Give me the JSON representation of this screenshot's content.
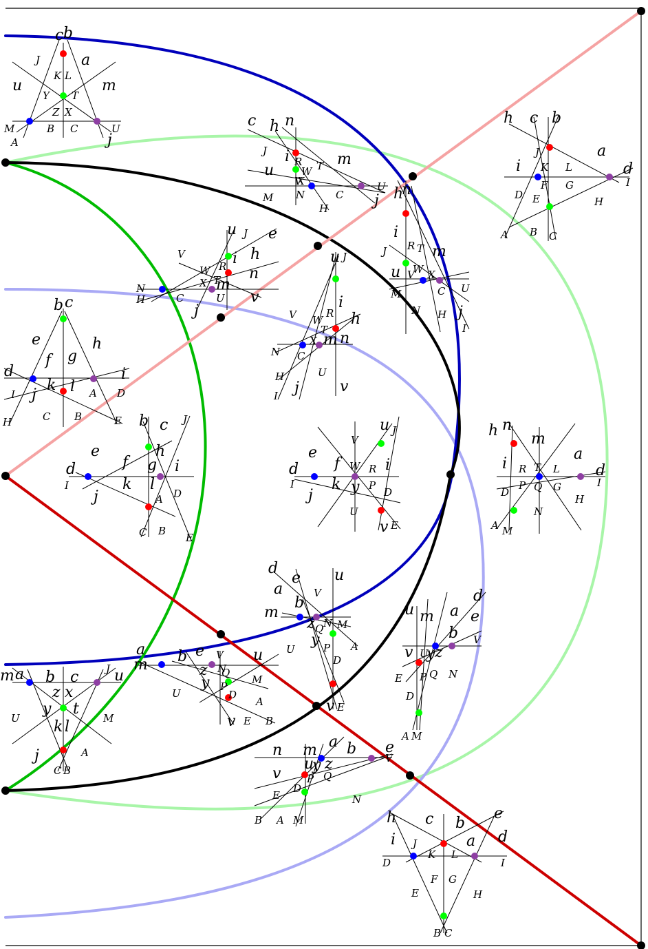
{
  "colors": {
    "dark_blue": "#0000bb",
    "light_blue": "#a9a9f5",
    "green": "#00bb00",
    "light_green": "#a8f5a8",
    "pink": "#f5a3a3",
    "dark_red": "#cc0000",
    "black": "#000000",
    "dot_red": "#ff0000",
    "dot_green": "#00ff00",
    "dot_blue": "#0000ff",
    "dot_purple": "#8e3fa3"
  },
  "glyphs": [
    {
      "t": "c",
      "b": 1
    },
    {
      "t": "b",
      "b": 1
    },
    {
      "t": "J",
      "b": 0
    },
    {
      "t": "a",
      "b": 1
    },
    {
      "t": "K",
      "b": 0
    },
    {
      "t": "L",
      "b": 0
    },
    {
      "t": "u",
      "b": 1
    },
    {
      "t": "m",
      "b": 1
    },
    {
      "t": "Y",
      "b": 0
    },
    {
      "t": "T",
      "b": 0
    },
    {
      "t": "Z",
      "b": 0
    },
    {
      "t": "X",
      "b": 0
    },
    {
      "t": "M",
      "b": 0
    },
    {
      "t": "B",
      "b": 0
    },
    {
      "t": "C",
      "b": 0
    },
    {
      "t": "U",
      "b": 0
    },
    {
      "t": "A",
      "b": 0
    },
    {
      "t": "j",
      "b": 1
    },
    {
      "t": "c",
      "b": 1
    },
    {
      "t": "h",
      "b": 1
    },
    {
      "t": "n",
      "b": 1
    },
    {
      "t": "J",
      "b": 0
    },
    {
      "t": "i",
      "b": 1
    },
    {
      "t": "R",
      "b": 0
    },
    {
      "t": "T",
      "b": 0
    },
    {
      "t": "m",
      "b": 1
    },
    {
      "t": "u",
      "b": 1
    },
    {
      "t": "W",
      "b": 0
    },
    {
      "t": "X",
      "b": 0
    },
    {
      "t": "V",
      "b": 0
    },
    {
      "t": "U",
      "b": 0
    },
    {
      "t": "M",
      "b": 0
    },
    {
      "t": "N",
      "b": 0
    },
    {
      "t": "C",
      "b": 0
    },
    {
      "t": "j",
      "b": 1
    },
    {
      "t": "H",
      "b": 0
    },
    {
      "t": "h",
      "b": 1
    },
    {
      "t": "c",
      "b": 1
    },
    {
      "t": "b",
      "b": 1
    },
    {
      "t": "J",
      "b": 0
    },
    {
      "t": "a",
      "b": 1
    },
    {
      "t": "i",
      "b": 1
    },
    {
      "t": "K",
      "b": 0
    },
    {
      "t": "L",
      "b": 0
    },
    {
      "t": "d",
      "b": 1
    },
    {
      "t": "F",
      "b": 0
    },
    {
      "t": "G",
      "b": 0
    },
    {
      "t": "I",
      "b": 0
    },
    {
      "t": "D",
      "b": 0
    },
    {
      "t": "E",
      "b": 0
    },
    {
      "t": "H",
      "b": 0
    },
    {
      "t": "A",
      "b": 0
    },
    {
      "t": "B",
      "b": 0
    },
    {
      "t": "C",
      "b": 0
    },
    {
      "t": "u",
      "b": 1
    },
    {
      "t": "J",
      "b": 0
    },
    {
      "t": "e",
      "b": 1
    },
    {
      "t": "V",
      "b": 0
    },
    {
      "t": "h",
      "b": 1
    },
    {
      "t": "W",
      "b": 0
    },
    {
      "t": "R",
      "b": 0
    },
    {
      "t": "i",
      "b": 1
    },
    {
      "t": "n",
      "b": 1
    },
    {
      "t": "X",
      "b": 0
    },
    {
      "t": "T",
      "b": 0
    },
    {
      "t": "m",
      "b": 1
    },
    {
      "t": "N",
      "b": 0
    },
    {
      "t": "H",
      "b": 0
    },
    {
      "t": "C",
      "b": 0
    },
    {
      "t": "U",
      "b": 0
    },
    {
      "t": "v",
      "b": 1
    },
    {
      "t": "j",
      "b": 1
    },
    {
      "t": "h",
      "b": 1
    },
    {
      "t": "n",
      "b": 1
    },
    {
      "t": "i",
      "b": 1
    },
    {
      "t": "R",
      "b": 0
    },
    {
      "t": "T",
      "b": 0
    },
    {
      "t": "m",
      "b": 1
    },
    {
      "t": "J",
      "b": 0
    },
    {
      "t": "u",
      "b": 1
    },
    {
      "t": "V",
      "b": 0
    },
    {
      "t": "W",
      "b": 0
    },
    {
      "t": "X",
      "b": 0
    },
    {
      "t": "M",
      "b": 0
    },
    {
      "t": "C",
      "b": 0
    },
    {
      "t": "U",
      "b": 0
    },
    {
      "t": "N",
      "b": 0
    },
    {
      "t": "H",
      "b": 0
    },
    {
      "t": "j",
      "b": 1
    },
    {
      "t": "I",
      "b": 0
    },
    {
      "t": "u",
      "b": 1
    },
    {
      "t": "J",
      "b": 0
    },
    {
      "t": "i",
      "b": 1
    },
    {
      "t": "V",
      "b": 0
    },
    {
      "t": "W",
      "b": 0
    },
    {
      "t": "R",
      "b": 0
    },
    {
      "t": "h",
      "b": 1
    },
    {
      "t": "T",
      "b": 0
    },
    {
      "t": "X",
      "b": 0
    },
    {
      "t": "m",
      "b": 1
    },
    {
      "t": "n",
      "b": 1
    },
    {
      "t": "N",
      "b": 0
    },
    {
      "t": "C",
      "b": 0
    },
    {
      "t": "U",
      "b": 0
    },
    {
      "t": "H",
      "b": 0
    },
    {
      "t": "j",
      "b": 1
    },
    {
      "t": "v",
      "b": 1
    },
    {
      "t": "I",
      "b": 0
    },
    {
      "t": "b",
      "b": 1
    },
    {
      "t": "c",
      "b": 1
    },
    {
      "t": "e",
      "b": 1
    },
    {
      "t": "h",
      "b": 1
    },
    {
      "t": "f",
      "b": 1
    },
    {
      "t": "g",
      "b": 1
    },
    {
      "t": "d",
      "b": 1
    },
    {
      "t": "i",
      "b": 1
    },
    {
      "t": "k",
      "b": 1
    },
    {
      "t": "l",
      "b": 1
    },
    {
      "t": "j",
      "b": 1
    },
    {
      "t": "I",
      "b": 0
    },
    {
      "t": "A",
      "b": 0
    },
    {
      "t": "D",
      "b": 0
    },
    {
      "t": "H",
      "b": 0
    },
    {
      "t": "C",
      "b": 0
    },
    {
      "t": "B",
      "b": 0
    },
    {
      "t": "E",
      "b": 0
    },
    {
      "t": "b",
      "b": 1
    },
    {
      "t": "c",
      "b": 1
    },
    {
      "t": "J",
      "b": 0
    },
    {
      "t": "e",
      "b": 1
    },
    {
      "t": "h",
      "b": 1
    },
    {
      "t": "f",
      "b": 1
    },
    {
      "t": "g",
      "b": 1
    },
    {
      "t": "d",
      "b": 1
    },
    {
      "t": "i",
      "b": 1
    },
    {
      "t": "k",
      "b": 1
    },
    {
      "t": "l",
      "b": 1
    },
    {
      "t": "I",
      "b": 0
    },
    {
      "t": "j",
      "b": 1
    },
    {
      "t": "A",
      "b": 0
    },
    {
      "t": "D",
      "b": 0
    },
    {
      "t": "C",
      "b": 0
    },
    {
      "t": "B",
      "b": 0
    },
    {
      "t": "E",
      "b": 0
    },
    {
      "t": "u",
      "b": 1
    },
    {
      "t": "J",
      "b": 0
    },
    {
      "t": "V",
      "b": 0
    },
    {
      "t": "e",
      "b": 1
    },
    {
      "t": "f",
      "b": 1
    },
    {
      "t": "W",
      "b": 0
    },
    {
      "t": "R",
      "b": 0
    },
    {
      "t": "i",
      "b": 1
    },
    {
      "t": "d",
      "b": 1
    },
    {
      "t": "k",
      "b": 1
    },
    {
      "t": "y",
      "b": 1
    },
    {
      "t": "P",
      "b": 0
    },
    {
      "t": "I",
      "b": 0
    },
    {
      "t": "j",
      "b": 1
    },
    {
      "t": "D",
      "b": 0
    },
    {
      "t": "U",
      "b": 0
    },
    {
      "t": "v",
      "b": 1
    },
    {
      "t": "E",
      "b": 0
    },
    {
      "t": "h",
      "b": 1
    },
    {
      "t": "n",
      "b": 1
    },
    {
      "t": "m",
      "b": 1
    },
    {
      "t": "a",
      "b": 1
    },
    {
      "t": "i",
      "b": 1
    },
    {
      "t": "R",
      "b": 0
    },
    {
      "t": "T",
      "b": 0
    },
    {
      "t": "L",
      "b": 0
    },
    {
      "t": "d",
      "b": 1
    },
    {
      "t": "D",
      "b": 0
    },
    {
      "t": "P",
      "b": 0
    },
    {
      "t": "Q",
      "b": 0
    },
    {
      "t": "G",
      "b": 0
    },
    {
      "t": "I",
      "b": 0
    },
    {
      "t": "H",
      "b": 0
    },
    {
      "t": "N",
      "b": 0
    },
    {
      "t": "A",
      "b": 0
    },
    {
      "t": "M",
      "b": 0
    },
    {
      "t": "d",
      "b": 1
    },
    {
      "t": "e",
      "b": 1
    },
    {
      "t": "u",
      "b": 1
    },
    {
      "t": "a",
      "b": 1
    },
    {
      "t": "V",
      "b": 0
    },
    {
      "t": "m",
      "b": 1
    },
    {
      "t": "b",
      "b": 1
    },
    {
      "t": "z",
      "b": 1
    },
    {
      "t": "N",
      "b": 0
    },
    {
      "t": "M",
      "b": 0
    },
    {
      "t": "Q",
      "b": 0
    },
    {
      "t": "y",
      "b": 1
    },
    {
      "t": "A",
      "b": 0
    },
    {
      "t": "U",
      "b": 0
    },
    {
      "t": "P",
      "b": 0
    },
    {
      "t": "D",
      "b": 0
    },
    {
      "t": "v",
      "b": 1
    },
    {
      "t": "E",
      "b": 0
    },
    {
      "t": "u",
      "b": 1
    },
    {
      "t": "m",
      "b": 1
    },
    {
      "t": "a",
      "b": 1
    },
    {
      "t": "d",
      "b": 1
    },
    {
      "t": "e",
      "b": 1
    },
    {
      "t": "b",
      "b": 1
    },
    {
      "t": "V",
      "b": 0
    },
    {
      "t": "v",
      "b": 1
    },
    {
      "t": "U",
      "b": 0
    },
    {
      "t": "y",
      "b": 1
    },
    {
      "t": "z",
      "b": 1
    },
    {
      "t": "N",
      "b": 0
    },
    {
      "t": "E",
      "b": 0
    },
    {
      "t": "P",
      "b": 0
    },
    {
      "t": "Q",
      "b": 0
    },
    {
      "t": "D",
      "b": 0
    },
    {
      "t": "A",
      "b": 0
    },
    {
      "t": "M",
      "b": 0
    },
    {
      "t": "a",
      "b": 1
    },
    {
      "t": "m",
      "b": 1
    },
    {
      "t": "b",
      "b": 1
    },
    {
      "t": "e",
      "b": 1
    },
    {
      "t": "V",
      "b": 0
    },
    {
      "t": "u",
      "b": 1
    },
    {
      "t": "z",
      "b": 1
    },
    {
      "t": "y",
      "b": 1
    },
    {
      "t": "N",
      "b": 0
    },
    {
      "t": "M",
      "b": 0
    },
    {
      "t": "U",
      "b": 0
    },
    {
      "t": "P",
      "b": 0
    },
    {
      "t": "D",
      "b": 0
    },
    {
      "t": "A",
      "b": 0
    },
    {
      "t": "v",
      "b": 1
    },
    {
      "t": "E",
      "b": 0
    },
    {
      "t": "B",
      "b": 0
    },
    {
      "t": "Q",
      "b": 0
    },
    {
      "t": "m",
      "b": 1
    },
    {
      "t": "a",
      "b": 1
    },
    {
      "t": "b",
      "b": 1
    },
    {
      "t": "c",
      "b": 1
    },
    {
      "t": "J",
      "b": 0
    },
    {
      "t": "u",
      "b": 1
    },
    {
      "t": "z",
      "b": 1
    },
    {
      "t": "x",
      "b": 1
    },
    {
      "t": "y",
      "b": 1
    },
    {
      "t": "t",
      "b": 1
    },
    {
      "t": "U",
      "b": 0
    },
    {
      "t": "M",
      "b": 0
    },
    {
      "t": "k",
      "b": 1
    },
    {
      "t": "l",
      "b": 1
    },
    {
      "t": "j",
      "b": 1
    },
    {
      "t": "A",
      "b": 0
    },
    {
      "t": "C",
      "b": 0
    },
    {
      "t": "B",
      "b": 0
    },
    {
      "t": "n",
      "b": 1
    },
    {
      "t": "m",
      "b": 1
    },
    {
      "t": "a",
      "b": 1
    },
    {
      "t": "b",
      "b": 1
    },
    {
      "t": "e",
      "b": 1
    },
    {
      "t": "V",
      "b": 0
    },
    {
      "t": "v",
      "b": 1
    },
    {
      "t": "u",
      "b": 1
    },
    {
      "t": "y",
      "b": 1
    },
    {
      "t": "z",
      "b": 1
    },
    {
      "t": "Q",
      "b": 0
    },
    {
      "t": "D",
      "b": 0
    },
    {
      "t": "P",
      "b": 0
    },
    {
      "t": "E",
      "b": 0
    },
    {
      "t": "N",
      "b": 0
    },
    {
      "t": "B",
      "b": 0
    },
    {
      "t": "A",
      "b": 0
    },
    {
      "t": "M",
      "b": 0
    },
    {
      "t": "h",
      "b": 1
    },
    {
      "t": "c",
      "b": 1
    },
    {
      "t": "b",
      "b": 1
    },
    {
      "t": "e",
      "b": 1
    },
    {
      "t": "i",
      "b": 1
    },
    {
      "t": "J",
      "b": 0
    },
    {
      "t": "a",
      "b": 1
    },
    {
      "t": "d",
      "b": 1
    },
    {
      "t": "K",
      "b": 0
    },
    {
      "t": "L",
      "b": 0
    },
    {
      "t": "D",
      "b": 0
    },
    {
      "t": "I",
      "b": 0
    },
    {
      "t": "F",
      "b": 0
    },
    {
      "t": "G",
      "b": 0
    },
    {
      "t": "E",
      "b": 0
    },
    {
      "t": "H",
      "b": 0
    },
    {
      "t": "B",
      "b": 0
    },
    {
      "t": "C",
      "b": 0
    }
  ]
}
